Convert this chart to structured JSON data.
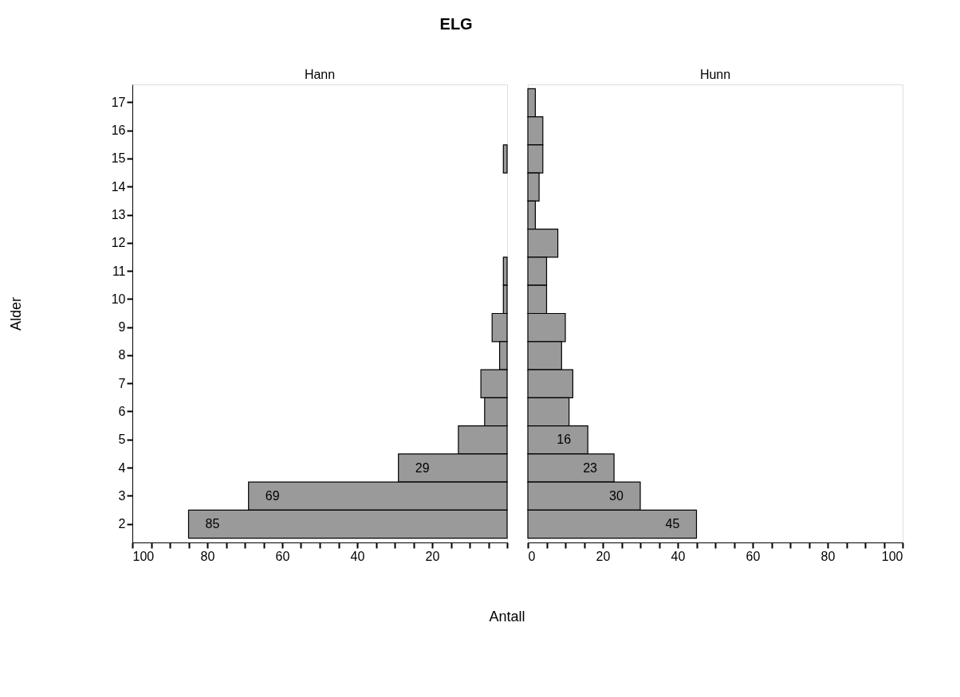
{
  "chart_data": [
    {
      "type": "bar",
      "orientation": "horizontal",
      "title": "ELG",
      "xlabel": "Antall",
      "ylabel": "Alder",
      "categories": [
        "17",
        "16",
        "15",
        "14",
        "13",
        "12",
        "11",
        "10",
        "9",
        "8",
        "7",
        "6",
        "5",
        "4",
        "3",
        "2"
      ],
      "series": [
        {
          "name": "Hann",
          "color": "#9a9a9a",
          "values": [
            0,
            0,
            1,
            0,
            0,
            0,
            1,
            1,
            4,
            2,
            7,
            6,
            13,
            29,
            69,
            85
          ],
          "value_labels": [
            null,
            null,
            null,
            null,
            null,
            null,
            null,
            null,
            null,
            null,
            null,
            null,
            null,
            "29",
            "69",
            "85"
          ]
        }
      ],
      "xlim": [
        100,
        0
      ],
      "xticks": [
        100,
        {
          "value": 95,
          "label": null
        },
        {
          "value": 90,
          "label": null
        },
        {
          "value": 85,
          "label": null
        },
        80,
        {
          "value": 75,
          "label": null
        },
        {
          "value": 70,
          "label": null
        },
        {
          "value": 65,
          "label": null
        },
        60,
        {
          "value": 55,
          "label": null
        },
        {
          "value": 50,
          "label": null
        },
        {
          "value": 45,
          "label": null
        },
        40,
        {
          "value": 35,
          "label": null
        },
        {
          "value": 30,
          "label": null
        },
        {
          "value": 25,
          "label": null
        },
        20,
        {
          "value": 15,
          "label": null
        },
        {
          "value": 10,
          "label": null
        },
        {
          "value": 5,
          "label": null
        },
        {
          "value": 0,
          "label": null
        }
      ]
    },
    {
      "type": "bar",
      "orientation": "horizontal",
      "categories": [
        "17",
        "16",
        "15",
        "14",
        "13",
        "12",
        "11",
        "10",
        "9",
        "8",
        "7",
        "6",
        "5",
        "4",
        "3",
        "2"
      ],
      "series": [
        {
          "name": "Hunn",
          "color": "#9a9a9a",
          "values": [
            2,
            4,
            4,
            3,
            2,
            8,
            5,
            5,
            10,
            9,
            12,
            11,
            16,
            23,
            30,
            45
          ],
          "value_labels": [
            null,
            null,
            null,
            null,
            null,
            null,
            null,
            null,
            null,
            null,
            null,
            null,
            "16",
            "23",
            "30",
            "45"
          ]
        }
      ],
      "xlim": [
        0,
        100
      ],
      "xticks": [
        0,
        {
          "value": 5,
          "label": null
        },
        {
          "value": 10,
          "label": null
        },
        {
          "value": 15,
          "label": null
        },
        20,
        {
          "value": 25,
          "label": null
        },
        {
          "value": 30,
          "label": null
        },
        {
          "value": 35,
          "label": null
        },
        40,
        {
          "value": 45,
          "label": null
        },
        {
          "value": 50,
          "label": null
        },
        {
          "value": 55,
          "label": null
        },
        60,
        {
          "value": 65,
          "label": null
        },
        {
          "value": 70,
          "label": null
        },
        {
          "value": 75,
          "label": null
        },
        80,
        {
          "value": 85,
          "label": null
        },
        {
          "value": 90,
          "label": null
        },
        {
          "value": 95,
          "label": null
        },
        100
      ],
      "tick_labels": "x"
    }
  ]
}
